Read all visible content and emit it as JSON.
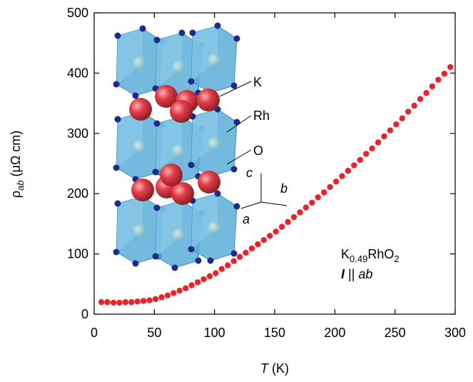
{
  "chart_data": {
    "type": "scatter",
    "x_label": {
      "symbol": "T",
      "unit": "(K)"
    },
    "y_label": {
      "symbol": "ρ",
      "subscript": "ab",
      "unit": "(μΩ cm)"
    },
    "color": "#e8232b",
    "x": [
      6,
      11,
      16,
      21,
      26,
      31,
      36,
      41,
      46,
      51,
      56,
      61,
      66,
      71,
      76,
      81,
      86,
      91,
      96,
      101,
      106,
      111,
      116,
      121,
      126,
      131,
      136,
      141,
      146,
      151,
      156,
      161,
      166,
      171,
      176,
      181,
      186,
      191,
      196,
      201,
      206,
      211,
      216,
      221,
      226,
      231,
      236,
      241,
      246,
      251,
      256,
      261,
      266,
      271,
      276,
      281,
      286,
      291,
      296
    ],
    "values": [
      20,
      20,
      19,
      19,
      20,
      20,
      21,
      22,
      23,
      25,
      28,
      31,
      35,
      39,
      43,
      48,
      53,
      58,
      63,
      68,
      75,
      81,
      88,
      95,
      102,
      109,
      116,
      123,
      130,
      137,
      145,
      153,
      161,
      169,
      177,
      185,
      194,
      202,
      211,
      220,
      229,
      238,
      247,
      256,
      266,
      275,
      285,
      295,
      305,
      315,
      325,
      336,
      346,
      357,
      367,
      378,
      389,
      399,
      410
    ],
    "xlim": [
      0,
      300
    ],
    "xticks": [
      0,
      50,
      100,
      150,
      200,
      250,
      300
    ],
    "ylim": [
      0,
      500
    ],
    "yticks": [
      0,
      100,
      200,
      300,
      400,
      500
    ],
    "annotations": {
      "formula": [
        "K",
        "0.49",
        "RhO",
        "2"
      ],
      "current": [
        "I",
        " || ",
        "ab"
      ],
      "atoms": [
        "K",
        "Rh",
        "O"
      ],
      "axes": [
        "c",
        "b",
        "a"
      ]
    }
  }
}
